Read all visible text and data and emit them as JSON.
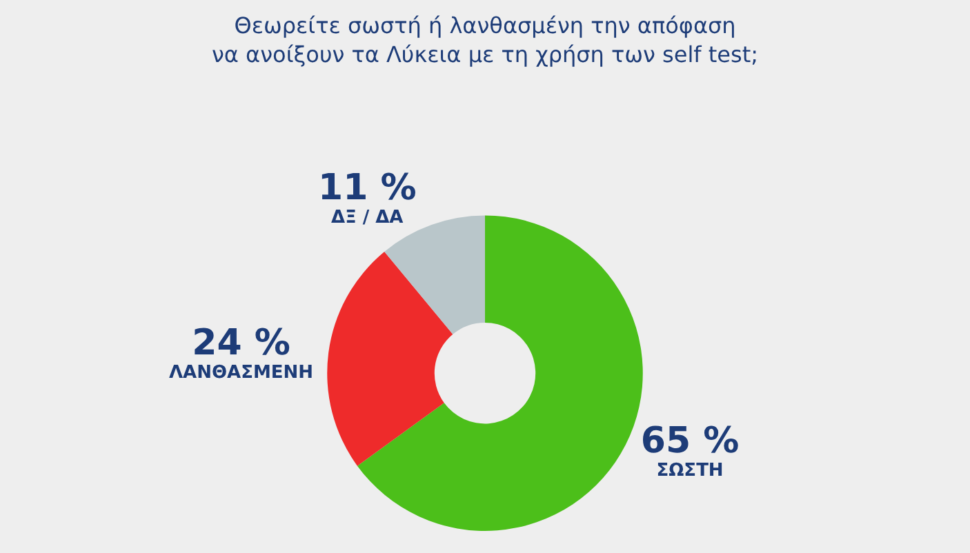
{
  "chart_data": {
    "type": "donut",
    "title": "Θεωρείτε σωστή ή λανθασμένη την απόφαση\nνα ανοίξουν τα Λύκεια με τη χρήση των self test;",
    "categories": [
      "ΣΩΣΤΗ",
      "ΛΑΝΘΑΣΜΕΝΗ",
      "ΔΞ / ΔΑ"
    ],
    "values": [
      65,
      24,
      11
    ],
    "colors": [
      "#4cbf1a",
      "#ee2b2b",
      "#b9c6ca"
    ],
    "value_labels": [
      "65 %",
      "24 %",
      "11 %"
    ],
    "legend": false
  }
}
